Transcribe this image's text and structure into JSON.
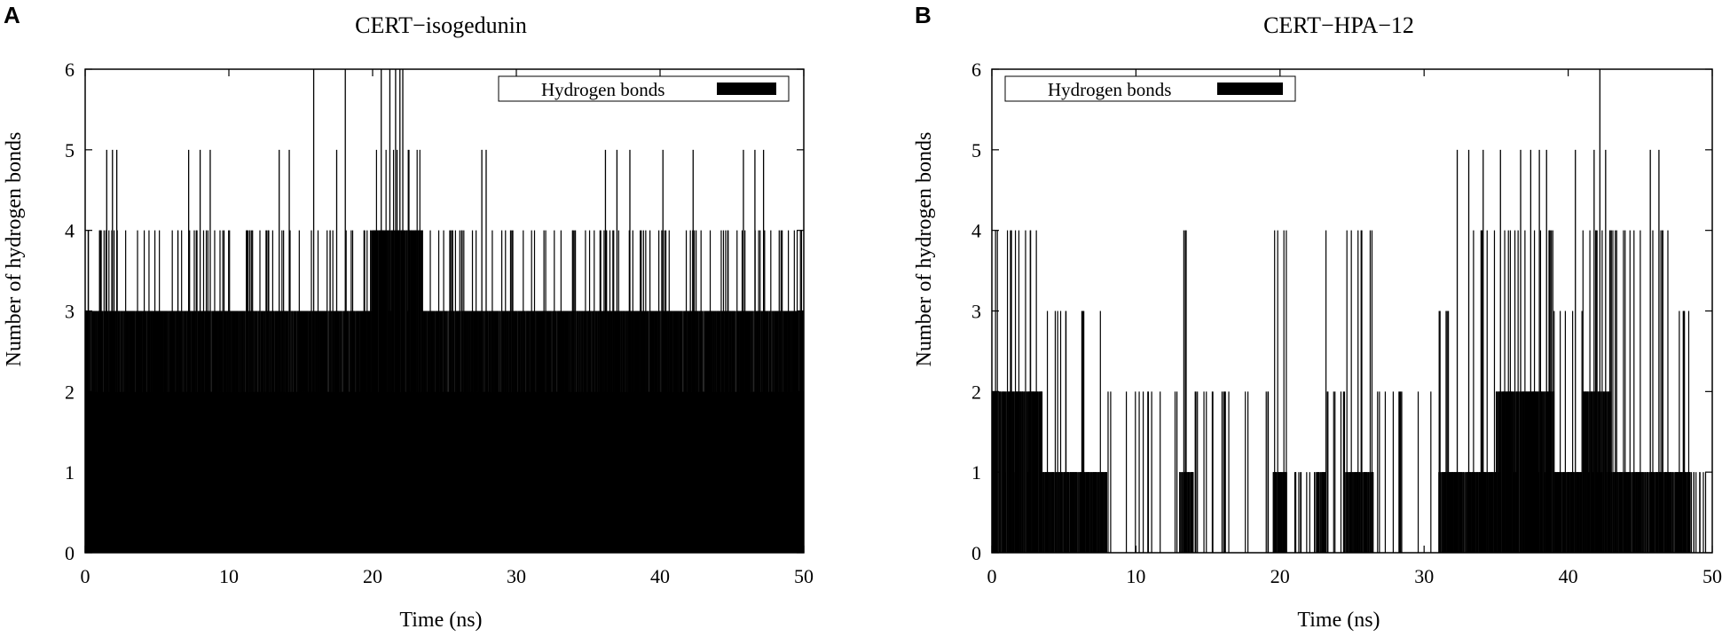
{
  "chart_data": [
    {
      "type": "bar",
      "panel": "A",
      "title": "CERT−isogedunin",
      "xlabel": "Time (ns)",
      "ylabel": "Number of hydrogen bonds",
      "xlim": [
        0,
        50
      ],
      "ylim": [
        0,
        6
      ],
      "xticks": [
        "0",
        "10",
        "20",
        "30",
        "40",
        "50"
      ],
      "yticks": [
        "0",
        "1",
        "2",
        "3",
        "4",
        "5",
        "6"
      ],
      "legend": {
        "label": "Hydrogen bonds",
        "position": "top-right",
        "color": "#000000"
      },
      "series": [
        {
          "segments": [
            {
              "start": 0,
              "end": 2,
              "baseline": 3,
              "peak": 4,
              "spikes": [
                {
                  "x": 1.5,
                  "y": 5
                },
                {
                  "x": 1.9,
                  "y": 5
                },
                {
                  "x": 2.2,
                  "y": 5
                }
              ]
            },
            {
              "start": 2,
              "end": 9,
              "baseline": 3,
              "peak": 4,
              "spikes": [
                {
                  "x": 7.2,
                  "y": 5
                },
                {
                  "x": 8.0,
                  "y": 5
                },
                {
                  "x": 8.7,
                  "y": 5
                }
              ]
            },
            {
              "start": 9,
              "end": 16,
              "baseline": 3,
              "peak": 4,
              "spikes": [
                {
                  "x": 13.5,
                  "y": 5
                },
                {
                  "x": 14.2,
                  "y": 5
                },
                {
                  "x": 15.9,
                  "y": 6
                }
              ]
            },
            {
              "start": 16,
              "end": 20,
              "baseline": 3,
              "peak": 4,
              "spikes": [
                {
                  "x": 17.5,
                  "y": 5
                },
                {
                  "x": 18.1,
                  "y": 6
                }
              ]
            },
            {
              "start": 20,
              "end": 23.5,
              "baseline": 4,
              "peak": 5,
              "spikes": [
                {
                  "x": 20.6,
                  "y": 6
                },
                {
                  "x": 21.2,
                  "y": 6
                },
                {
                  "x": 21.6,
                  "y": 6
                },
                {
                  "x": 21.9,
                  "y": 6
                },
                {
                  "x": 22.1,
                  "y": 6
                }
              ]
            },
            {
              "start": 23.5,
              "end": 36,
              "baseline": 3,
              "peak": 4,
              "spikes": [
                {
                  "x": 27.6,
                  "y": 5
                },
                {
                  "x": 27.9,
                  "y": 5
                }
              ]
            },
            {
              "start": 36,
              "end": 43,
              "baseline": 3,
              "peak": 4,
              "spikes": [
                {
                  "x": 36.2,
                  "y": 5
                },
                {
                  "x": 37.0,
                  "y": 5
                },
                {
                  "x": 37.9,
                  "y": 5
                },
                {
                  "x": 40.2,
                  "y": 5
                },
                {
                  "x": 42.3,
                  "y": 5
                }
              ]
            },
            {
              "start": 43,
              "end": 50,
              "baseline": 3,
              "peak": 4,
              "spikes": [
                {
                  "x": 45.8,
                  "y": 5
                },
                {
                  "x": 46.6,
                  "y": 5
                },
                {
                  "x": 47.2,
                  "y": 5
                }
              ]
            }
          ],
          "floor": 2
        }
      ]
    },
    {
      "type": "bar",
      "panel": "B",
      "title": "CERT−HPA−12",
      "xlabel": "Time (ns)",
      "ylabel": "Number of hydrogen bonds",
      "xlim": [
        0,
        50
      ],
      "ylim": [
        0,
        6
      ],
      "xticks": [
        "0",
        "10",
        "20",
        "30",
        "40",
        "50"
      ],
      "yticks": [
        "0",
        "1",
        "2",
        "3",
        "4",
        "5",
        "6"
      ],
      "legend": {
        "label": "Hydrogen bonds",
        "position": "top-left",
        "color": "#000000"
      },
      "series": [
        {
          "segments": [
            {
              "start": 0,
              "end": 3.5,
              "baseline": 2,
              "peak": 4,
              "spikes": []
            },
            {
              "start": 3.5,
              "end": 8,
              "baseline": 1,
              "peak": 3,
              "spikes": []
            },
            {
              "start": 8,
              "end": 13,
              "baseline": 0,
              "peak": 2,
              "spikes": []
            },
            {
              "start": 13,
              "end": 14,
              "baseline": 1,
              "peak": 4,
              "spikes": []
            },
            {
              "start": 14,
              "end": 19.5,
              "baseline": 0,
              "peak": 2,
              "spikes": []
            },
            {
              "start": 19.5,
              "end": 20.5,
              "baseline": 1,
              "peak": 4,
              "spikes": []
            },
            {
              "start": 20.5,
              "end": 22.5,
              "baseline": 0,
              "peak": 1,
              "spikes": []
            },
            {
              "start": 22.5,
              "end": 23.2,
              "baseline": 1,
              "peak": 4,
              "spikes": []
            },
            {
              "start": 23.2,
              "end": 24.5,
              "baseline": 0,
              "peak": 2,
              "spikes": []
            },
            {
              "start": 24.5,
              "end": 26.5,
              "baseline": 1,
              "peak": 4,
              "spikes": []
            },
            {
              "start": 26.5,
              "end": 31,
              "baseline": 0,
              "peak": 2,
              "spikes": []
            },
            {
              "start": 31,
              "end": 32,
              "baseline": 1,
              "peak": 3,
              "spikes": []
            },
            {
              "start": 32,
              "end": 35,
              "baseline": 1,
              "peak": 4,
              "spikes": [
                {
                  "x": 32.3,
                  "y": 5
                },
                {
                  "x": 33.1,
                  "y": 5
                },
                {
                  "x": 34.1,
                  "y": 5
                }
              ]
            },
            {
              "start": 35,
              "end": 39,
              "baseline": 2,
              "peak": 4,
              "spikes": [
                {
                  "x": 35.3,
                  "y": 5
                },
                {
                  "x": 36.7,
                  "y": 5
                },
                {
                  "x": 37.4,
                  "y": 5
                },
                {
                  "x": 38.0,
                  "y": 5
                },
                {
                  "x": 38.5,
                  "y": 5
                }
              ]
            },
            {
              "start": 39,
              "end": 41,
              "baseline": 1,
              "peak": 3,
              "spikes": [
                {
                  "x": 40.5,
                  "y": 5
                }
              ]
            },
            {
              "start": 41,
              "end": 43,
              "baseline": 2,
              "peak": 4,
              "spikes": [
                {
                  "x": 41.8,
                  "y": 5
                },
                {
                  "x": 42.2,
                  "y": 6
                },
                {
                  "x": 42.6,
                  "y": 5
                }
              ]
            },
            {
              "start": 43,
              "end": 47,
              "baseline": 1,
              "peak": 4,
              "spikes": [
                {
                  "x": 45.7,
                  "y": 5
                },
                {
                  "x": 46.3,
                  "y": 5
                }
              ]
            },
            {
              "start": 47,
              "end": 48.5,
              "baseline": 1,
              "peak": 3,
              "spikes": []
            },
            {
              "start": 48.5,
              "end": 50,
              "baseline": 0,
              "peak": 1,
              "spikes": []
            }
          ],
          "floor": 0
        }
      ]
    }
  ]
}
